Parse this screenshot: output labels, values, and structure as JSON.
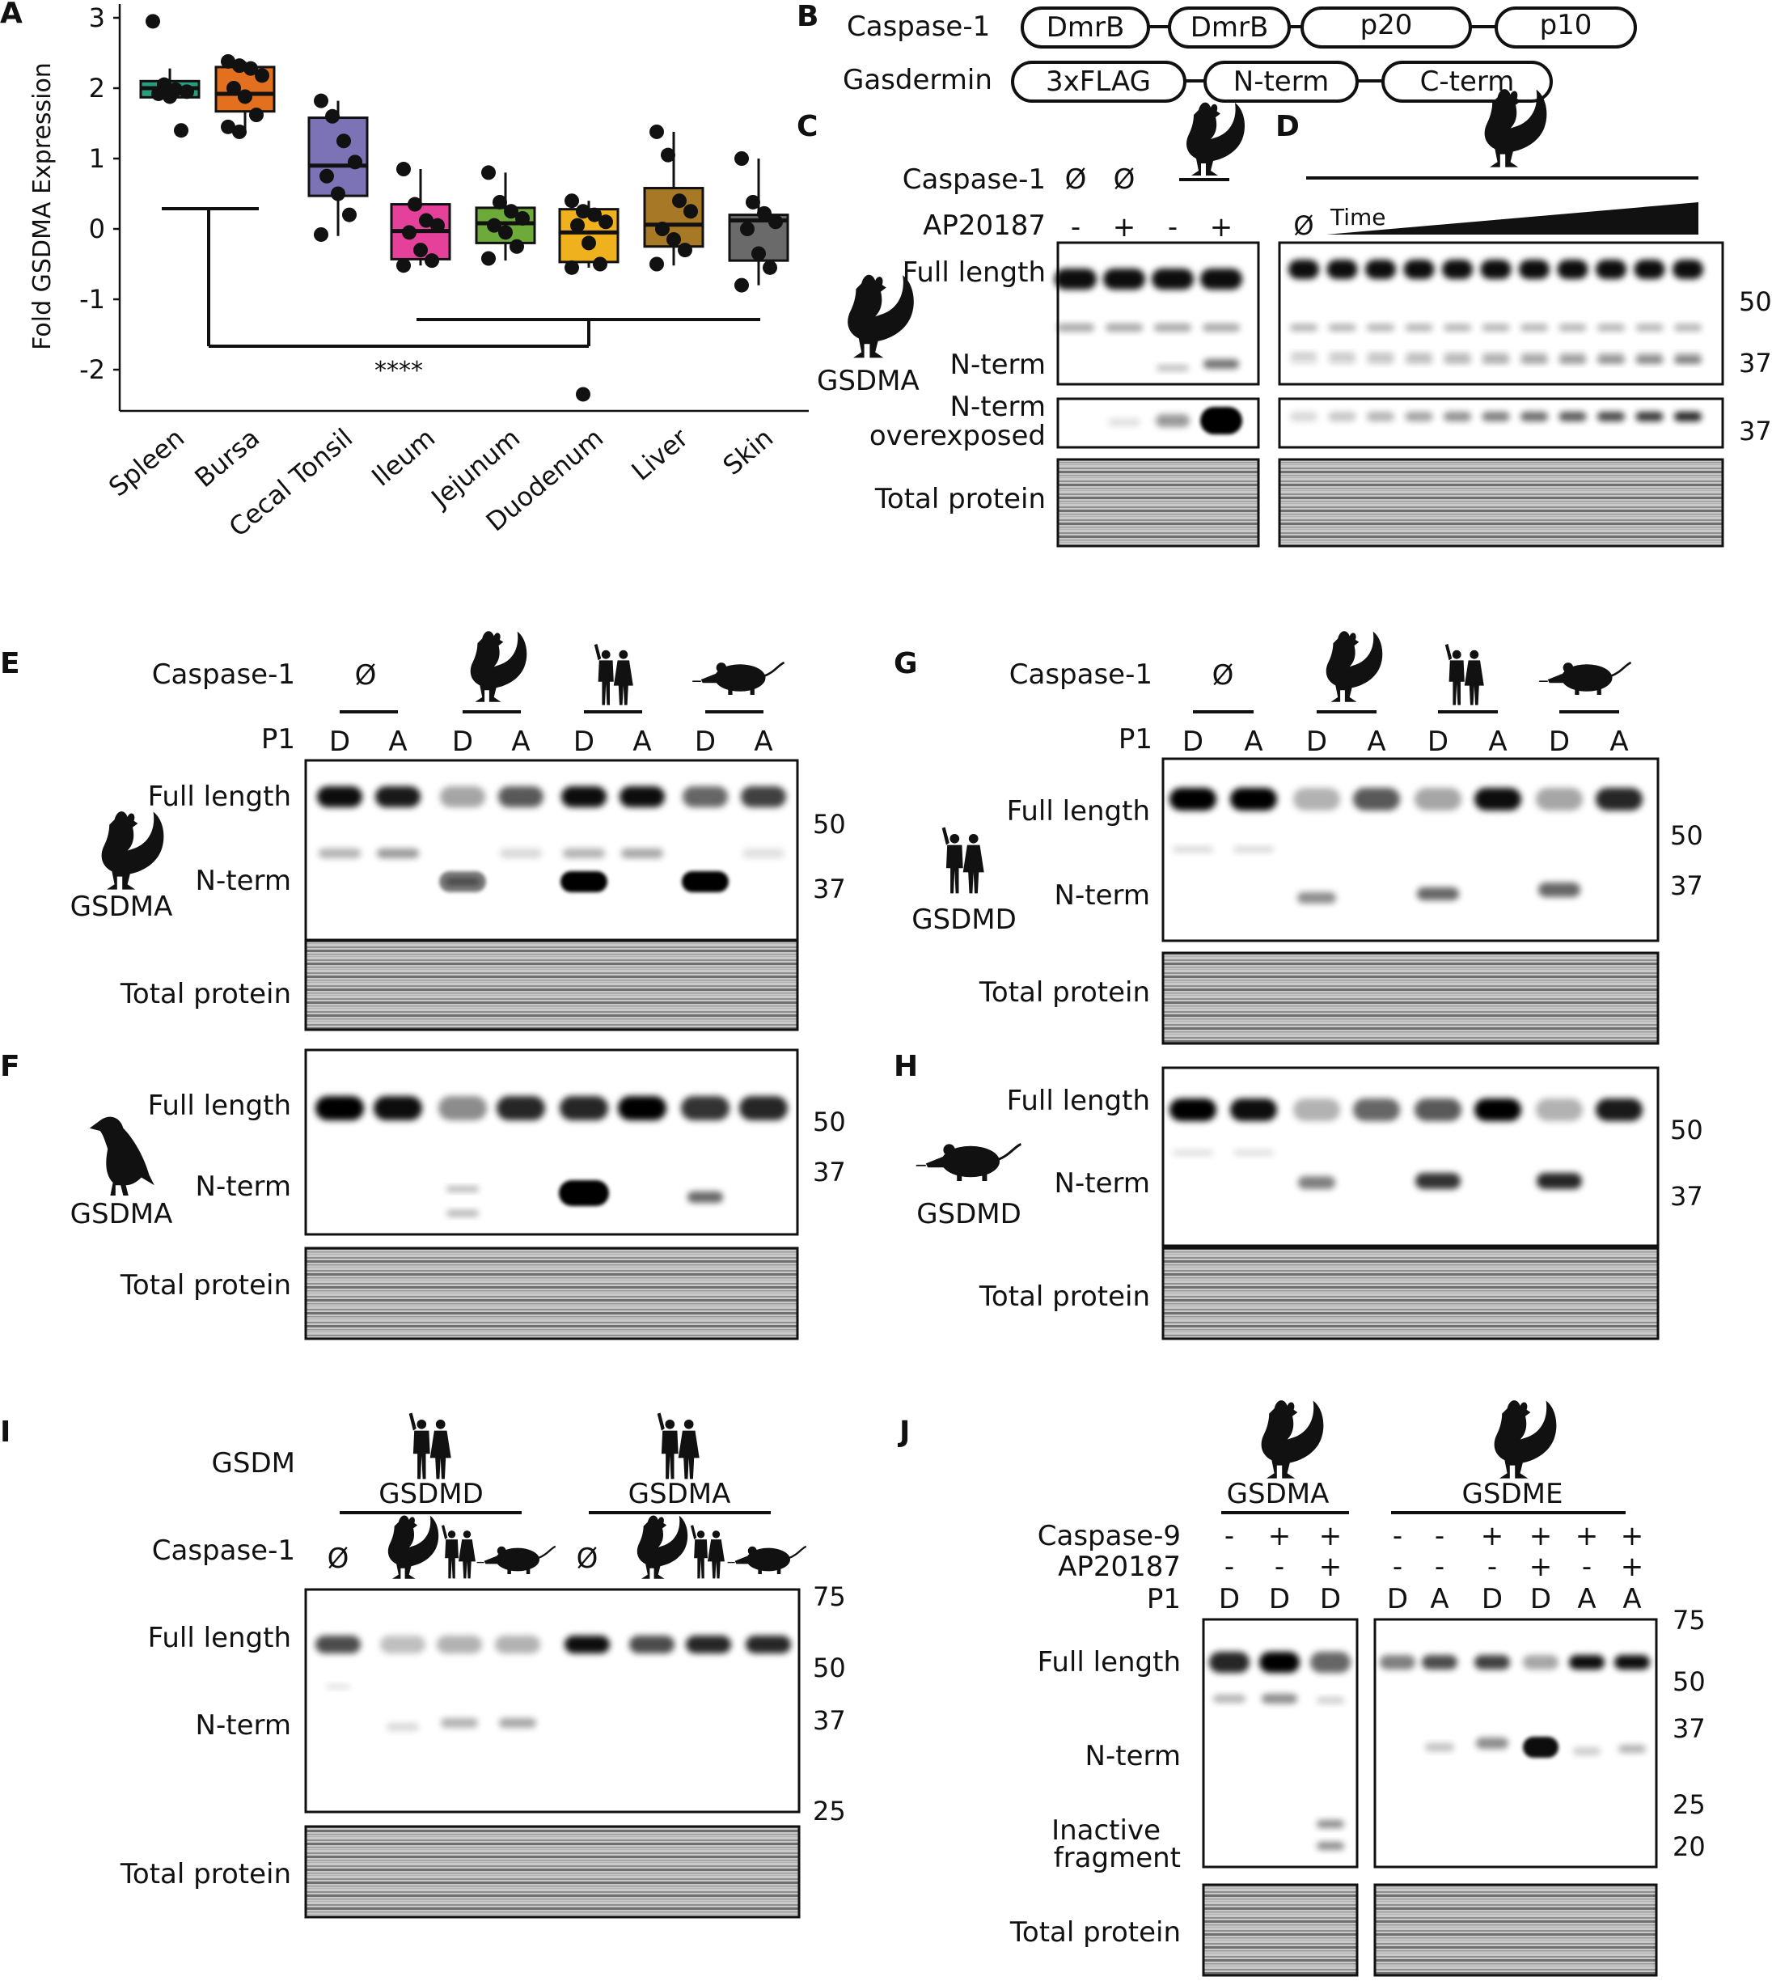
{
  "panel_letters": [
    "A",
    "B",
    "C",
    "D",
    "E",
    "F",
    "G",
    "H",
    "I",
    "J"
  ],
  "panelA": {
    "ylabel": "Fold GSDMA Expression",
    "ytick_labels": [
      "3",
      "2",
      "1",
      "0",
      "-1",
      "-2"
    ],
    "significance": "****",
    "chart_data": {
      "type": "box",
      "ylabel": "Fold GSDMA Expression",
      "ylim": [
        -2.5,
        3.2
      ],
      "categories": [
        "Spleen",
        "Bursa",
        "Cecal Tonsil",
        "Ileum",
        "Jejunum",
        "Duodenum",
        "Liver",
        "Skin"
      ],
      "colors": [
        "#2a9d7c",
        "#e2701e",
        "#7b73b6",
        "#e5419a",
        "#6eaa3a",
        "#efb21e",
        "#a77927",
        "#6a6a6a"
      ],
      "boxes": [
        {
          "q1": 1.87,
          "median": 2.0,
          "q3": 2.1,
          "whisker_low": 1.83,
          "whisker_high": 2.28
        },
        {
          "q1": 1.67,
          "median": 1.92,
          "q3": 2.3,
          "whisker_low": 1.38,
          "whisker_high": 2.38
        },
        {
          "q1": 0.47,
          "median": 0.9,
          "q3": 1.58,
          "whisker_low": -0.1,
          "whisker_high": 1.82
        },
        {
          "q1": -0.43,
          "median": -0.03,
          "q3": 0.35,
          "whisker_low": -0.52,
          "whisker_high": 0.85
        },
        {
          "q1": -0.2,
          "median": 0.08,
          "q3": 0.3,
          "whisker_low": -0.45,
          "whisker_high": 0.8
        },
        {
          "q1": -0.47,
          "median": -0.05,
          "q3": 0.28,
          "whisker_low": -0.55,
          "whisker_high": 0.4
        },
        {
          "q1": -0.25,
          "median": 0.06,
          "q3": 0.58,
          "whisker_low": -0.52,
          "whisker_high": 1.38
        },
        {
          "q1": -0.45,
          "median": 0.12,
          "q3": 0.2,
          "whisker_low": -0.8,
          "whisker_high": 1.0
        }
      ],
      "points": [
        [
          2.95,
          2.05,
          1.98,
          1.95,
          1.92,
          1.88,
          1.4
        ],
        [
          2.38,
          2.32,
          2.28,
          2.18,
          2.0,
          1.88,
          1.62,
          1.45,
          1.38
        ],
        [
          1.82,
          1.6,
          1.25,
          0.95,
          0.75,
          0.5,
          0.2,
          -0.08
        ],
        [
          0.85,
          0.35,
          0.12,
          0.05,
          -0.05,
          -0.3,
          -0.45,
          -0.52
        ],
        [
          0.8,
          0.38,
          0.25,
          0.15,
          0.05,
          -0.05,
          -0.25,
          -0.42
        ],
        [
          0.4,
          0.25,
          0.2,
          0.1,
          0.05,
          -0.2,
          -0.5,
          -0.55,
          -2.35
        ],
        [
          1.38,
          1.05,
          0.4,
          0.25,
          0.0,
          -0.15,
          -0.3,
          -0.5
        ],
        [
          1.0,
          0.38,
          0.22,
          0.1,
          0.0,
          -0.35,
          -0.55,
          -0.8
        ]
      ]
    }
  },
  "panelB": {
    "row1_label": "Caspase-1",
    "row1_parts": [
      "DmrB",
      "DmrB",
      "p20",
      "p10"
    ],
    "row2_label": "Gasdermin",
    "row2_parts": [
      "3xFLAG",
      "N-term",
      "C-term"
    ]
  },
  "panelC": {
    "caspase_label": "Caspase-1",
    "null1": "Ø",
    "null2": "Ø",
    "ap_label": "AP20187",
    "ap_values": [
      "-",
      "+",
      "-",
      "+"
    ],
    "row_full": "Full length",
    "row_nterm": "N-term",
    "row_over1": "N-term",
    "row_over2": "overexposed",
    "row_total": "Total protein",
    "gsdm": "GSDMA"
  },
  "panelD": {
    "null": "Ø",
    "time_label": "Time",
    "mw": [
      "50",
      "37",
      "37"
    ]
  },
  "panelE": {
    "caspase_label": "Caspase-1",
    "null": "Ø",
    "p1_label": "P1",
    "p1_values": [
      "D",
      "A",
      "D",
      "A",
      "D",
      "A",
      "D",
      "A"
    ],
    "row_full": "Full length",
    "row_nterm": "N-term",
    "row_total": "Total protein",
    "gsdm": "GSDMA",
    "mw": [
      "50",
      "37"
    ]
  },
  "panelF": {
    "row_full": "Full length",
    "row_nterm": "N-term",
    "row_total": "Total protein",
    "gsdm": "GSDMA",
    "mw": [
      "50",
      "37"
    ]
  },
  "panelG": {
    "caspase_label": "Caspase-1",
    "null": "Ø",
    "p1_label": "P1",
    "p1_values": [
      "D",
      "A",
      "D",
      "A",
      "D",
      "A",
      "D",
      "A"
    ],
    "row_full": "Full length",
    "row_nterm": "N-term",
    "row_total": "Total protein",
    "gsdm": "GSDMD",
    "mw": [
      "50",
      "37"
    ]
  },
  "panelH": {
    "row_full": "Full length",
    "row_nterm": "N-term",
    "row_total": "Total protein",
    "gsdm": "GSDMD",
    "mw": [
      "50",
      "37"
    ]
  },
  "panelI": {
    "gsdm_label": "GSDM",
    "group1": "GSDMD",
    "group2": "GSDMA",
    "caspase_label": "Caspase-1",
    "null": "Ø",
    "row_full": "Full length",
    "row_nterm": "N-term",
    "row_total": "Total protein",
    "mw": [
      "75",
      "50",
      "37",
      "25"
    ]
  },
  "panelJ": {
    "group1": "GSDMA",
    "group2": "GSDME",
    "casp9_label": "Caspase-9",
    "ap_label": "AP20187",
    "p1_label": "P1",
    "casp9_values": [
      "-",
      "+",
      "+",
      "-",
      "-",
      "+",
      "+",
      "+",
      "+"
    ],
    "ap_values": [
      "-",
      "-",
      "+",
      "-",
      "-",
      "-",
      "+",
      "-",
      "+"
    ],
    "p1_values": [
      "D",
      "D",
      "D",
      "D",
      "A",
      "D",
      "D",
      "A",
      "A"
    ],
    "row_full": "Full length",
    "row_nterm": "N-term",
    "row_inactive1": "Inactive",
    "row_inactive2": "fragment",
    "row_total": "Total protein",
    "mw": [
      "75",
      "50",
      "37",
      "25",
      "20"
    ]
  }
}
